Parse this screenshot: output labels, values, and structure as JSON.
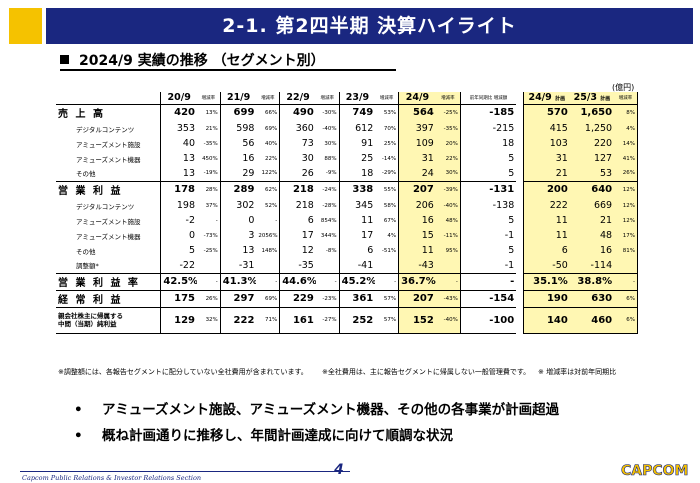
{
  "header": {
    "title": "2-1.  第2四半期  決算ハイライト",
    "subtitle": "2024/9 実績の推移  （セグメント別）"
  },
  "colors": {
    "accent": "#1a2780",
    "brand_yellow": "#f5c200",
    "highlight": "#fff7b3"
  },
  "table": {
    "unit": "(億円)",
    "columns": {
      "c1": "20/9",
      "c1s": "増減率",
      "c2": "21/9",
      "c2s": "増減率",
      "c3": "22/9",
      "c3s": "増減率",
      "c4": "23/9",
      "c4s": "増減率",
      "c5": "24/9",
      "c5s": "増減率",
      "c6s": "前年同期比 増減額",
      "c7": "24/9",
      "c7s": "計画",
      "c8": "25/3",
      "c8s": "計画",
      "c9s": "増減率"
    },
    "rows": [
      {
        "label": "売 上 高",
        "a": "420",
        "ap": "13%",
        "b": "699",
        "bp": "66%",
        "c": "490",
        "cp": "-30%",
        "d": "749",
        "dp": "53%",
        "e": "564",
        "ep": "-25%",
        "f": "-185",
        "g": "570",
        "h": "1,650",
        "hp": "8%"
      },
      {
        "label": "デジタルコンテンツ",
        "a": "353",
        "ap": "21%",
        "b": "598",
        "bp": "69%",
        "c": "360",
        "cp": "-40%",
        "d": "612",
        "dp": "70%",
        "e": "397",
        "ep": "-35%",
        "f": "-215",
        "g": "415",
        "h": "1,250",
        "hp": "4%"
      },
      {
        "label": "アミューズメント施設",
        "a": "40",
        "ap": "-35%",
        "b": "56",
        "bp": "40%",
        "c": "73",
        "cp": "30%",
        "d": "91",
        "dp": "25%",
        "e": "109",
        "ep": "20%",
        "f": "18",
        "g": "103",
        "h": "220",
        "hp": "14%"
      },
      {
        "label": "アミューズメント機器",
        "a": "13",
        "ap": "450%",
        "b": "16",
        "bp": "22%",
        "c": "30",
        "cp": "88%",
        "d": "25",
        "dp": "-14%",
        "e": "31",
        "ep": "22%",
        "f": "5",
        "g": "31",
        "h": "127",
        "hp": "41%"
      },
      {
        "label": "その他",
        "a": "13",
        "ap": "-19%",
        "b": "29",
        "bp": "122%",
        "c": "26",
        "cp": "-9%",
        "d": "18",
        "dp": "-29%",
        "e": "24",
        "ep": "30%",
        "f": "5",
        "g": "21",
        "h": "53",
        "hp": "26%"
      },
      {
        "label": "営 業 利 益",
        "a": "178",
        "ap": "28%",
        "b": "289",
        "bp": "62%",
        "c": "218",
        "cp": "-24%",
        "d": "338",
        "dp": "55%",
        "e": "207",
        "ep": "-39%",
        "f": "-131",
        "g": "200",
        "h": "640",
        "hp": "12%"
      },
      {
        "label": "デジタルコンテンツ",
        "a": "198",
        "ap": "37%",
        "b": "302",
        "bp": "52%",
        "c": "218",
        "cp": "-28%",
        "d": "345",
        "dp": "58%",
        "e": "206",
        "ep": "-40%",
        "f": "-138",
        "g": "222",
        "h": "669",
        "hp": "12%"
      },
      {
        "label": "アミューズメント施設",
        "a": "-2",
        "ap": "-",
        "b": "0",
        "bp": "-",
        "c": "6",
        "cp": "854%",
        "d": "11",
        "dp": "67%",
        "e": "16",
        "ep": "48%",
        "f": "5",
        "g": "11",
        "h": "21",
        "hp": "12%"
      },
      {
        "label": "アミューズメント機器",
        "a": "0",
        "ap": "-73%",
        "b": "3",
        "bp": "2056%",
        "c": "17",
        "cp": "344%",
        "d": "17",
        "dp": "4%",
        "e": "15",
        "ep": "-11%",
        "f": "-1",
        "g": "11",
        "h": "48",
        "hp": "17%"
      },
      {
        "label": "その他",
        "a": "5",
        "ap": "-25%",
        "b": "13",
        "bp": "148%",
        "c": "12",
        "cp": "-8%",
        "d": "6",
        "dp": "-51%",
        "e": "11",
        "ep": "95%",
        "f": "5",
        "g": "6",
        "h": "16",
        "hp": "81%"
      },
      {
        "label": "調整額*",
        "a": "-22",
        "ap": "",
        "b": "-31",
        "bp": "",
        "c": "-35",
        "cp": "",
        "d": "-41",
        "dp": "",
        "e": "-43",
        "ep": "",
        "f": "-1",
        "g": "-50",
        "h": "-114",
        "hp": ""
      },
      {
        "label": "営 業 利 益 率",
        "a": "42.5%",
        "ap": "-",
        "b": "41.3%",
        "bp": "-",
        "c": "44.6%",
        "cp": "-",
        "d": "45.2%",
        "dp": "-",
        "e": "36.7%",
        "ep": "-",
        "f": "-",
        "g": "35.1%",
        "h": "38.8%",
        "hp": "-"
      },
      {
        "label": "経 常 利 益",
        "a": "175",
        "ap": "26%",
        "b": "297",
        "bp": "69%",
        "c": "229",
        "cp": "-23%",
        "d": "361",
        "dp": "57%",
        "e": "207",
        "ep": "-43%",
        "f": "-154",
        "g": "190",
        "h": "630",
        "hp": "6%"
      },
      {
        "label": "親会社株主に帰属する",
        "label2": "中間（当期）純利益",
        "a": "129",
        "ap": "32%",
        "b": "222",
        "bp": "71%",
        "c": "161",
        "cp": "-27%",
        "d": "252",
        "dp": "57%",
        "e": "152",
        "ep": "-40%",
        "f": "-100",
        "g": "140",
        "h": "460",
        "hp": "6%"
      }
    ]
  },
  "notes": {
    "n1": "※調整額には、各報告セグメントに配分していない全社費用が含まれています。",
    "n2": "※全社費用は、主に報告セグメントに帰属しない一般管理費です。",
    "n3": "※ 増減率は対前年同期比"
  },
  "bullets": [
    "アミューズメント施設、アミューズメント機器、その他の各事業が計画超過",
    "概ね計画通りに推移し、年間計画達成に向けて順調な状況"
  ],
  "footer": {
    "text": "Capcom Public Relations & Investor Relations Section",
    "page": "4",
    "logo": "CAPCOM"
  }
}
